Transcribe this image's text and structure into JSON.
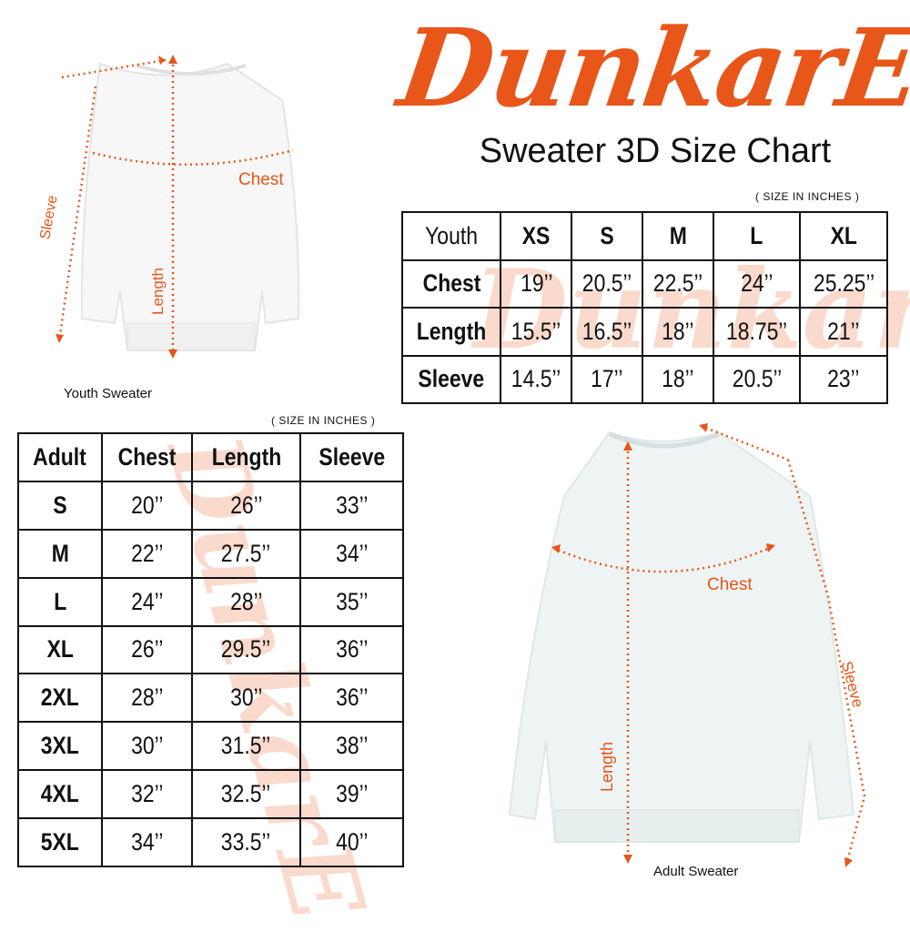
{
  "brand": {
    "logo_text": "DunkarE",
    "color": "#e8561a"
  },
  "title": "Sweater 3D Size Chart",
  "youth": {
    "unit_note": "( SIZE IN INCHES )",
    "header": [
      "Youth",
      "XS",
      "S",
      "M",
      "L",
      "XL"
    ],
    "rows": [
      [
        "Chest",
        "19’’",
        "20.5’’",
        "22.5’’",
        "24’’",
        "25.25’’"
      ],
      [
        "Length",
        "15.5’’",
        "16.5’’",
        "18’’",
        "18.75’’",
        "21’’"
      ],
      [
        "Sleeve",
        "14.5’’",
        "17’’",
        "18’’",
        "20.5’’",
        "23’’"
      ]
    ],
    "image_label": "Youth Sweater",
    "measure_labels": {
      "chest": "Chest",
      "length": "Length",
      "sleeve": "Sleeve"
    }
  },
  "adult": {
    "unit_note": "( SIZE IN INCHES )",
    "header": [
      "Adult",
      "Chest",
      "Length",
      "Sleeve"
    ],
    "rows": [
      [
        "S",
        "20’’",
        "26’’",
        "33’’"
      ],
      [
        "M",
        "22’’",
        "27.5’’",
        "34’’"
      ],
      [
        "L",
        "24’’",
        "28’’",
        "35’’"
      ],
      [
        "XL",
        "26’’",
        "29.5’’",
        "36’’"
      ],
      [
        "2XL",
        "28’’",
        "30’’",
        "36’’"
      ],
      [
        "3XL",
        "30’’",
        "31.5’’",
        "38’’"
      ],
      [
        "4XL",
        "32’’",
        "32.5’’",
        "39’’"
      ],
      [
        "5XL",
        "34’’",
        "33.5’’",
        "40’’"
      ]
    ],
    "image_label": "Adult Sweater",
    "measure_labels": {
      "chest": "Chest",
      "length": "Length",
      "sleeve": "Sleeve"
    }
  }
}
